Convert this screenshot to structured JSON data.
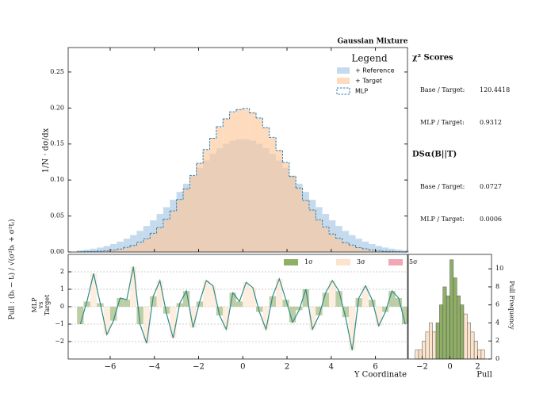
{
  "chart_data": [
    {
      "type": "histogram",
      "title": "Gaussian Mixture",
      "ylabel": "1/N · dσ/dx",
      "bins": [
        -7.5,
        -7.2,
        -6.9,
        -6.6,
        -6.3,
        -6.0,
        -5.7,
        -5.4,
        -5.1,
        -4.8,
        -4.5,
        -4.2,
        -3.9,
        -3.6,
        -3.3,
        -3.0,
        -2.7,
        -2.4,
        -2.1,
        -1.8,
        -1.5,
        -1.2,
        -0.9,
        -0.6,
        -0.3,
        0,
        0.3,
        0.6,
        0.9,
        1.2,
        1.5,
        1.8,
        2.1,
        2.4,
        2.7,
        3.0,
        3.3,
        3.6,
        3.9,
        4.2,
        4.5,
        4.8,
        5.1,
        5.4,
        5.7,
        6.0,
        6.3,
        6.6,
        6.9,
        7.2,
        7.5
      ],
      "series": [
        {
          "name": "+ Reference",
          "color": "#a6c8e4",
          "style": "filled",
          "values": [
            0.0024,
            0.0033,
            0.0046,
            0.0062,
            0.0084,
            0.011,
            0.0144,
            0.0185,
            0.0235,
            0.0294,
            0.0362,
            0.044,
            0.0528,
            0.0623,
            0.0726,
            0.0835,
            0.0949,
            0.1061,
            0.1169,
            0.1271,
            0.1363,
            0.1441,
            0.1503,
            0.1546,
            0.1567,
            0.1567,
            0.1546,
            0.1503,
            0.1441,
            0.1363,
            0.1271,
            0.1169,
            0.1061,
            0.0949,
            0.0835,
            0.0726,
            0.0623,
            0.0528,
            0.044,
            0.0362,
            0.0294,
            0.0235,
            0.0185,
            0.0144,
            0.011,
            0.0084,
            0.0062,
            0.0046,
            0.0033,
            0.0024
          ]
        },
        {
          "name": "+ Target",
          "color": "#fdc79a",
          "style": "filled",
          "values": [
            0.0002,
            0.0004,
            0.0007,
            0.0011,
            0.0018,
            0.0028,
            0.0042,
            0.0063,
            0.0093,
            0.0133,
            0.0187,
            0.0256,
            0.0343,
            0.045,
            0.0577,
            0.0723,
            0.0882,
            0.1057,
            0.1238,
            0.1417,
            0.1585,
            0.1734,
            0.1855,
            0.194,
            0.1984,
            0.1984,
            0.194,
            0.1855,
            0.1734,
            0.1585,
            0.1417,
            0.1238,
            0.1057,
            0.0882,
            0.0723,
            0.0577,
            0.045,
            0.0343,
            0.0256,
            0.0187,
            0.0133,
            0.0093,
            0.0063,
            0.0042,
            0.0028,
            0.0018,
            0.0011,
            0.0007,
            0.0004,
            0.0002
          ]
        },
        {
          "name": "MLP",
          "color": "#2a7fb8",
          "style": "dashed",
          "values": [
            0.0003,
            0.0005,
            0.0007,
            0.0012,
            0.0017,
            0.0029,
            0.0041,
            0.0065,
            0.0091,
            0.0136,
            0.0184,
            0.026,
            0.0338,
            0.0455,
            0.0571,
            0.0729,
            0.0876,
            0.1063,
            0.1231,
            0.1423,
            0.1579,
            0.174,
            0.1849,
            0.1947,
            0.1979,
            0.1995,
            0.1932,
            0.1861,
            0.1728,
            0.1592,
            0.1409,
            0.1245,
            0.105,
            0.0889,
            0.0716,
            0.0583,
            0.0446,
            0.0349,
            0.0251,
            0.0191,
            0.013,
            0.0096,
            0.0061,
            0.0044,
            0.0027,
            0.0019,
            0.001,
            0.0008,
            0.0004,
            0.0002
          ]
        }
      ],
      "xlim": [
        -7.9,
        7.45
      ],
      "xticks": [
        -6,
        -4,
        -2,
        0,
        2,
        4,
        6
      ],
      "ylim": [
        0,
        0.284
      ],
      "yticks": [
        {
          "value": 0,
          "label": "0.00"
        },
        {
          "value": 0.05,
          "label": "0.05"
        },
        {
          "value": 0.1,
          "label": "0.10"
        },
        {
          "value": 0.15,
          "label": "0.15"
        },
        {
          "value": 0.2,
          "label": "0.20"
        },
        {
          "value": 0.25,
          "label": "0.25"
        }
      ],
      "legend": {
        "title": "Legend",
        "corner": "upper right"
      }
    },
    {
      "type": "line",
      "label": "Pull : (bᵢ − tᵢ) / √(σ²bᵢ + σ²tᵢ)",
      "ylabel": [
        "MLP",
        "vs",
        "Target"
      ],
      "xlabel": "Y Coordinate",
      "color": "#2e8b8b",
      "values": [
        -1.0,
        0.3,
        1.9,
        0.2,
        -1.6,
        -0.8,
        0.5,
        0.4,
        2.3,
        -1.0,
        -2.1,
        0.6,
        1.5,
        -0.4,
        -1.8,
        0.2,
        0.9,
        -1.2,
        0.3,
        1.5,
        1.2,
        -0.5,
        -1.3,
        0.8,
        0.3,
        1.4,
        1.1,
        -0.3,
        -1.3,
        0.6,
        1.6,
        0.4,
        -0.9,
        -0.2,
        1.0,
        -1.3,
        -0.5,
        0.8,
        1.5,
        0.9,
        -0.6,
        -2.5,
        0.5,
        1.2,
        0.4,
        -1.1,
        -0.3,
        0.9,
        0.5,
        -1.0
      ],
      "xlim": [
        -7.9,
        7.45
      ],
      "xticks": [
        {
          "value": -6,
          "label": "−6"
        },
        {
          "value": -4,
          "label": "−4"
        },
        {
          "value": -2,
          "label": "−2"
        },
        0,
        2,
        4,
        6
      ],
      "ylim": [
        -3,
        3
      ],
      "yticks": [
        {
          "value": -2,
          "label": "−2"
        },
        {
          "value": -1,
          "label": "−1"
        },
        0,
        1,
        2
      ],
      "grid": true,
      "bands": [
        {
          "label": "1σ",
          "limit": 1,
          "color": "#8fae66"
        },
        {
          "label": "3σ",
          "limit": 3,
          "color": "#fbe3cc"
        },
        {
          "label": "5σ",
          "limit": 5,
          "color": "#f2a7b3"
        }
      ]
    },
    {
      "type": "histogram",
      "xlabel": "Pull",
      "y2label": "Pull Frequency",
      "bins": [
        -2.5,
        -2.25,
        -2.0,
        -1.75,
        -1.5,
        -1.25,
        -1.0,
        -0.75,
        -0.5,
        -0.25,
        0,
        0.25,
        0.5,
        0.75,
        1.0,
        1.25,
        1.5,
        1.75,
        2.0,
        2.25,
        2.5
      ],
      "values": [
        1,
        1,
        2,
        3,
        4,
        3,
        4,
        6,
        8,
        7,
        11,
        9,
        7,
        6,
        5,
        4,
        3,
        2,
        1,
        1
      ],
      "xlim": [
        -3,
        3
      ],
      "xticks": [
        {
          "value": -2,
          "label": "−2"
        },
        0,
        2
      ],
      "y2lim": [
        0,
        11.6
      ],
      "y2ticks": [
        0,
        2,
        4,
        6,
        8,
        10
      ]
    }
  ],
  "scores": {
    "chi2_title": "χ² Scores",
    "chi2": [
      {
        "label": "Base / Target:",
        "value": 120.4418
      },
      {
        "label": "MLP / Target:",
        "value": 0.9312
      }
    ],
    "ds_title": "DSα(B||T)",
    "ds": [
      {
        "label": "Base / Target:",
        "value": 0.0727
      },
      {
        "label": "MLP / Target:",
        "value": 0.0006
      }
    ]
  }
}
